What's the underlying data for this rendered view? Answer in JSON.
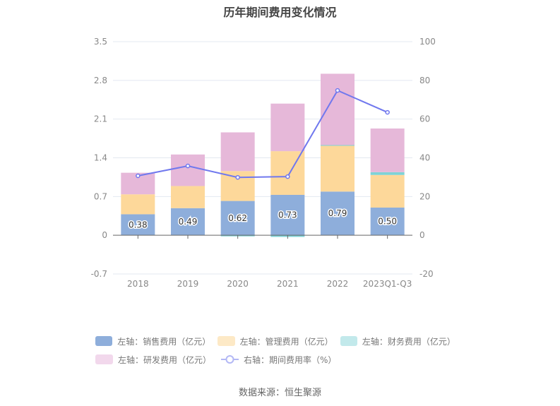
{
  "chart_data": {
    "type": "bar",
    "title": "历年期间费用变化情况",
    "categories": [
      "2018",
      "2019",
      "2020",
      "2021",
      "2022",
      "2023Q1-Q3"
    ],
    "left_axis": {
      "min": -0.7,
      "max": 3.5,
      "ticks": [
        "-0.7",
        "0",
        "0.7",
        "1.4",
        "2.1",
        "2.8",
        "3.5"
      ]
    },
    "right_axis": {
      "min": -20,
      "max": 100,
      "ticks": [
        "-20",
        "0",
        "20",
        "40",
        "60",
        "80",
        "100"
      ]
    },
    "series": [
      {
        "name": "左轴：销售费用（亿元）",
        "type": "bar",
        "color": "#8eaedb",
        "legend_color": "#8eaedb",
        "values": [
          0.38,
          0.49,
          0.62,
          0.73,
          0.79,
          0.5
        ],
        "labels": [
          "0.38",
          "0.49",
          "0.62",
          "0.73",
          "0.79",
          "0.50"
        ]
      },
      {
        "name": "左轴：管理费用（亿元）",
        "type": "bar",
        "color": "#fdd89a",
        "legend_color": "#fde9c6",
        "values": [
          0.36,
          0.4,
          0.54,
          0.79,
          0.83,
          0.59
        ]
      },
      {
        "name": "左轴：财务费用（亿元）",
        "type": "bar",
        "color": "#7fd3d6",
        "legend_color": "#c2e9eb",
        "values": [
          0.0,
          0.0,
          -0.02,
          -0.03,
          0.01,
          0.05
        ]
      },
      {
        "name": "左轴：研发费用（亿元）",
        "type": "bar",
        "color": "#e6b8d9",
        "legend_color": "#f2d8ec",
        "values": [
          0.39,
          0.57,
          0.7,
          0.86,
          1.29,
          0.79
        ]
      },
      {
        "name": "右轴：期间费用率（%）",
        "type": "line",
        "color": "#7078ee",
        "values": [
          30.7,
          35.8,
          29.9,
          30.3,
          74.8,
          63.5
        ]
      }
    ],
    "grid": true,
    "legend_position": "bottom"
  },
  "footer": "数据来源：恒生聚源"
}
